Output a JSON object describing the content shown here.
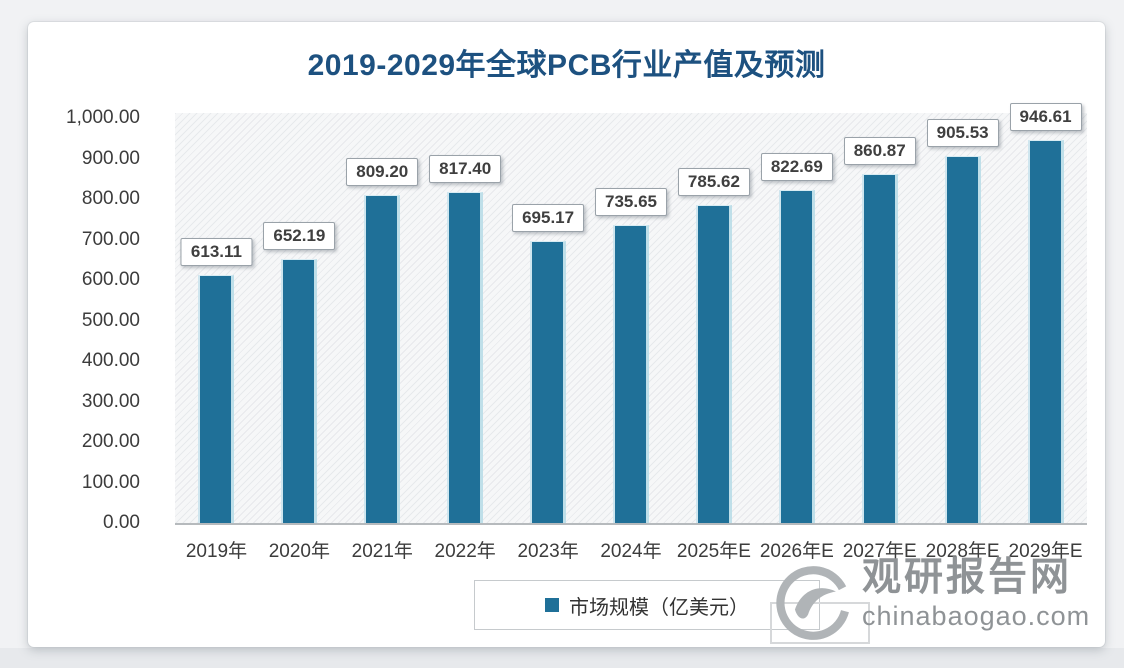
{
  "chart_data": {
    "type": "bar",
    "title": "2019-2029年全球PCB行业产值及预测",
    "categories": [
      "2019年",
      "2020年",
      "2021年",
      "2022年",
      "2023年",
      "2024年",
      "2025年E",
      "2026年E",
      "2027年E",
      "2028年E",
      "2029年E"
    ],
    "values": [
      613.11,
      652.19,
      809.2,
      817.4,
      695.17,
      735.65,
      785.62,
      822.69,
      860.87,
      905.53,
      946.61
    ],
    "value_labels": [
      "613.11",
      "652.19",
      "809.20",
      "817.40",
      "695.17",
      "735.65",
      "785.62",
      "822.69",
      "860.87",
      "905.53",
      "946.61"
    ],
    "y_ticks": [
      "1,000.00",
      "900.00",
      "800.00",
      "700.00",
      "600.00",
      "500.00",
      "400.00",
      "300.00",
      "200.00",
      "100.00",
      "0.00"
    ],
    "ylim": [
      0,
      1000
    ],
    "grid": false,
    "legend_position": "bottom",
    "legend": [
      {
        "label": "市场规模（亿美元）",
        "marker": "square",
        "color": "#1F7098"
      }
    ],
    "bar_color": "#1F7098",
    "title_color": "#1d5180"
  },
  "watermark": {
    "site_name": "观研报告网",
    "site_url": "chinabaogao.com",
    "logo": "guanyan-swirl-logo",
    "color": "#8f9396"
  }
}
